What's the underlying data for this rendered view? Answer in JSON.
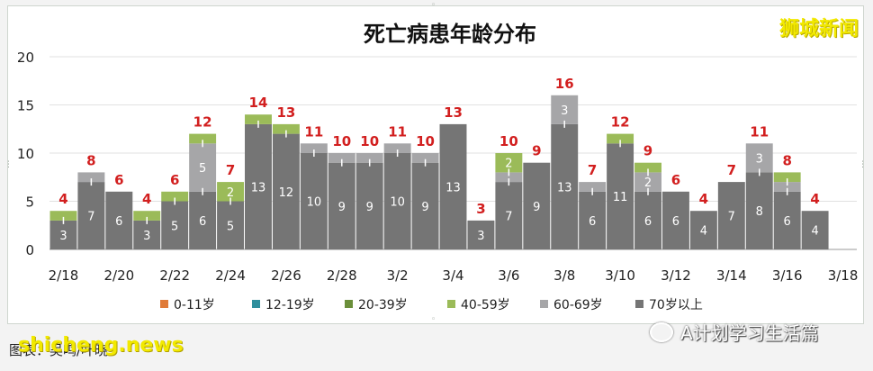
{
  "colors": {
    "age_0_11": "#e07b39",
    "age_12_19": "#2f8f9d",
    "age_20_39": "#6b8f3a",
    "age_40_59": "#9bbb59",
    "age_60_69": "#a6a6a8",
    "age_70_plus": "#757575",
    "total_label": "#d21f1f",
    "watermark": "#f2e900"
  },
  "watermark_top_right": "狮城新闻",
  "watermark_bottom_left": "shicheng.news",
  "credit_text": "图表：吴鸣/叶晓",
  "wechat_text": "A计划学习生活篇",
  "chart_data": {
    "type": "bar",
    "stacked": true,
    "title": "死亡病患年龄分布",
    "xlabel": "",
    "ylabel": "",
    "ylim": [
      0,
      20
    ],
    "yticks": [
      "0",
      "5",
      "10",
      "15",
      "20"
    ],
    "grid": true,
    "legend_position": "bottom",
    "categories": [
      "2/18",
      "2/19",
      "2/20",
      "2/21",
      "2/22",
      "2/23",
      "2/24",
      "2/25",
      "2/26",
      "2/27",
      "2/28",
      "3/1",
      "3/2",
      "3/3",
      "3/4",
      "3/5",
      "3/6",
      "3/7",
      "3/8",
      "3/9",
      "3/10",
      "3/11",
      "3/12",
      "3/13",
      "3/14",
      "3/15",
      "3/16",
      "3/17",
      "3/18"
    ],
    "xtick_labels": [
      "2/18",
      "",
      "2/20",
      "",
      "2/22",
      "",
      "2/24",
      "",
      "2/26",
      "",
      "2/28",
      "",
      "3/2",
      "",
      "3/4",
      "",
      "3/6",
      "",
      "3/8",
      "",
      "3/10",
      "",
      "3/12",
      "",
      "3/14",
      "",
      "3/16",
      "",
      "3/18"
    ],
    "series": [
      {
        "name": "0-11岁",
        "color_key": "age_0_11",
        "values": [
          0,
          0,
          0,
          0,
          0,
          0,
          0,
          0,
          0,
          0,
          0,
          0,
          0,
          0,
          0,
          0,
          0,
          0,
          0,
          0,
          0,
          0,
          0,
          0,
          0,
          0,
          0,
          0,
          0
        ]
      },
      {
        "name": "12-19岁",
        "color_key": "age_12_19",
        "values": [
          0,
          0,
          0,
          0,
          0,
          0,
          0,
          0,
          0,
          0,
          0,
          0,
          0,
          0,
          0,
          0,
          0,
          0,
          0,
          0,
          0,
          0,
          0,
          0,
          0,
          0,
          0,
          0,
          0
        ]
      },
      {
        "name": "20-39岁",
        "color_key": "age_20_39",
        "values": [
          0,
          0,
          0,
          0,
          0,
          0,
          0,
          0,
          0,
          0,
          0,
          0,
          0,
          0,
          0,
          0,
          0,
          0,
          0,
          0,
          0,
          0,
          0,
          0,
          0,
          0,
          0,
          0,
          0
        ]
      },
      {
        "name": "70岁以上",
        "color_key": "age_70_plus",
        "values": [
          3,
          7,
          6,
          3,
          5,
          6,
          5,
          13,
          12,
          10,
          9,
          9,
          10,
          9,
          13,
          3,
          7,
          9,
          13,
          6,
          11,
          6,
          6,
          4,
          7,
          8,
          6,
          4,
          0
        ]
      },
      {
        "name": "60-69岁",
        "color_key": "age_60_69",
        "values": [
          0,
          1,
          0,
          0,
          0,
          5,
          0,
          0,
          0,
          1,
          1,
          1,
          1,
          1,
          0,
          0,
          1,
          0,
          3,
          1,
          0,
          2,
          0,
          0,
          0,
          3,
          1,
          0,
          0
        ]
      },
      {
        "name": "40-59岁",
        "color_key": "age_40_59",
        "values": [
          1,
          0,
          0,
          1,
          1,
          1,
          2,
          1,
          1,
          0,
          0,
          0,
          0,
          0,
          0,
          0,
          2,
          0,
          0,
          0,
          1,
          1,
          0,
          0,
          0,
          0,
          1,
          0,
          0
        ]
      }
    ],
    "legend_order": [
      "0-11岁",
      "12-19岁",
      "20-39岁",
      "40-59岁",
      "60-69岁",
      "70岁以上"
    ],
    "segment_labels": [
      [
        "3",
        "",
        "",
        "",
        "",
        "",
        "",
        "",
        "",
        "",
        "",
        "",
        "",
        "",
        "",
        "",
        "",
        "",
        "",
        "",
        "",
        "",
        "",
        "",
        "",
        "",
        "",
        "",
        ""
      ],
      [
        "7",
        "",
        "",
        "",
        "",
        "",
        "",
        "",
        "",
        "",
        "",
        "",
        "",
        "",
        "",
        "",
        "",
        "",
        "",
        "",
        "",
        "",
        "",
        "",
        "",
        "",
        "",
        "",
        ""
      ],
      [
        "6",
        "",
        "",
        "",
        "",
        "",
        "",
        "",
        "",
        "",
        "",
        "",
        "",
        "",
        "",
        "",
        "",
        "",
        "",
        "",
        "",
        "",
        "",
        "",
        "",
        "",
        "",
        "",
        ""
      ],
      [
        "3",
        "",
        "",
        "",
        "",
        "",
        "",
        "",
        "",
        "",
        "",
        "",
        "",
        "",
        "",
        "",
        "",
        "",
        "",
        "",
        "",
        "",
        "",
        "",
        "",
        "",
        "",
        "",
        ""
      ],
      [
        "5",
        "",
        "",
        "",
        "",
        "",
        "",
        "",
        "",
        "",
        "",
        "",
        "",
        "",
        "",
        "",
        "",
        "",
        "",
        "",
        "",
        "",
        "",
        "",
        "",
        "",
        "",
        "",
        ""
      ],
      [
        "6",
        "5",
        "",
        "",
        "",
        "",
        "",
        "",
        "",
        "",
        "",
        "",
        "",
        "",
        "",
        "",
        "",
        "",
        "",
        "",
        "",
        "",
        "",
        "",
        "",
        "",
        "",
        "",
        ""
      ]
    ],
    "totals": [
      4,
      8,
      6,
      4,
      6,
      12,
      7,
      14,
      13,
      11,
      10,
      10,
      11,
      10,
      13,
      3,
      10,
      9,
      16,
      7,
      12,
      9,
      6,
      4,
      7,
      11,
      8,
      4,
      ""
    ]
  }
}
